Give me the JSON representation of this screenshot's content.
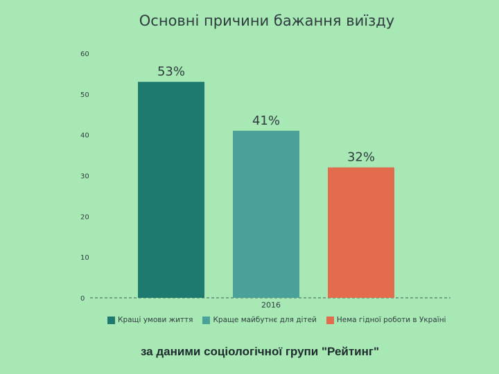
{
  "chart_data": {
    "type": "bar",
    "title": "Основні причини бажання виїзду",
    "categories": [
      "2016"
    ],
    "series": [
      {
        "name": "Кращі умови життя",
        "values": [
          53
        ],
        "label": "53%",
        "color": "#1e7a6f"
      },
      {
        "name": "Краще майбутнє для дітей",
        "values": [
          41
        ],
        "label": "41%",
        "color": "#49a199"
      },
      {
        "name": "Нема гідної роботи в Україні",
        "values": [
          32
        ],
        "label": "32%",
        "color": "#e36c4e"
      }
    ],
    "ylim": [
      0,
      60
    ],
    "yticks": [
      0,
      10,
      20,
      30,
      40,
      50,
      60
    ],
    "xlabel": "",
    "ylabel": "",
    "grid": false,
    "legend_position": "bottom"
  },
  "footer": "за даними соціологічної групи \"Рейтинг\""
}
